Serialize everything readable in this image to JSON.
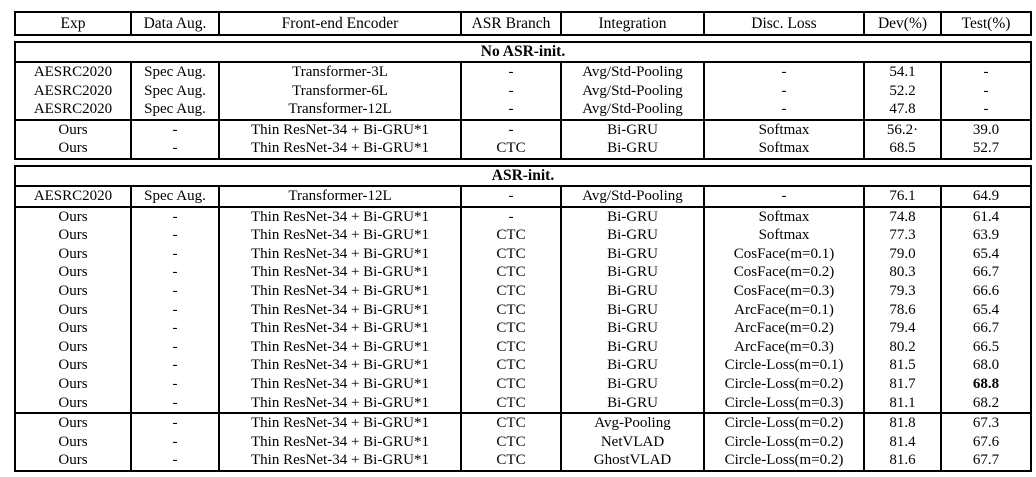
{
  "table": {
    "header": {
      "columns": [
        "Exp",
        "Data Aug.",
        "Front-end Encoder",
        "ASR Branch",
        "Integration",
        "Disc. Loss",
        "Dev(%)",
        "Test(%)"
      ]
    },
    "sections": [
      {
        "label": "No ASR-init.",
        "groups": [
          [
            [
              "AESRC2020",
              "Spec Aug.",
              "Transformer-3L",
              "-",
              "Avg/Std-Pooling",
              "-",
              "54.1",
              "-"
            ],
            [
              "AESRC2020",
              "Spec Aug.",
              "Transformer-6L",
              "-",
              "Avg/Std-Pooling",
              "-",
              "52.2",
              "-"
            ],
            [
              "AESRC2020",
              "Spec Aug.",
              "Transformer-12L",
              "-",
              "Avg/Std-Pooling",
              "-",
              "47.8",
              "-"
            ]
          ],
          [
            [
              "Ours",
              "-",
              "Thin ResNet-34 + Bi-GRU*1",
              "-",
              "Bi-GRU",
              "Softmax",
              "56.2·",
              "39.0"
            ],
            [
              "Ours",
              "-",
              "Thin ResNet-34 + Bi-GRU*1",
              "CTC",
              "Bi-GRU",
              "Softmax",
              "68.5",
              "52.7"
            ]
          ]
        ]
      },
      {
        "label": "ASR-init.",
        "groups": [
          [
            [
              "AESRC2020",
              "Spec Aug.",
              "Transformer-12L",
              "-",
              "Avg/Std-Pooling",
              "-",
              "76.1",
              "64.9"
            ]
          ],
          [
            [
              "Ours",
              "-",
              "Thin ResNet-34 + Bi-GRU*1",
              "-",
              "Bi-GRU",
              "Softmax",
              "74.8",
              "61.4"
            ],
            [
              "Ours",
              "-",
              "Thin ResNet-34 + Bi-GRU*1",
              "CTC",
              "Bi-GRU",
              "Softmax",
              "77.3",
              "63.9"
            ],
            [
              "Ours",
              "-",
              "Thin ResNet-34 + Bi-GRU*1",
              "CTC",
              "Bi-GRU",
              "CosFace(m=0.1)",
              "79.0",
              "65.4"
            ],
            [
              "Ours",
              "-",
              "Thin ResNet-34 + Bi-GRU*1",
              "CTC",
              "Bi-GRU",
              "CosFace(m=0.2)",
              "80.3",
              "66.7"
            ],
            [
              "Ours",
              "-",
              "Thin ResNet-34 + Bi-GRU*1",
              "CTC",
              "Bi-GRU",
              "CosFace(m=0.3)",
              "79.3",
              "66.6"
            ],
            [
              "Ours",
              "-",
              "Thin ResNet-34 + Bi-GRU*1",
              "CTC",
              "Bi-GRU",
              "ArcFace(m=0.1)",
              "78.6",
              "65.4"
            ],
            [
              "Ours",
              "-",
              "Thin ResNet-34 + Bi-GRU*1",
              "CTC",
              "Bi-GRU",
              "ArcFace(m=0.2)",
              "79.4",
              "66.7"
            ],
            [
              "Ours",
              "-",
              "Thin ResNet-34 + Bi-GRU*1",
              "CTC",
              "Bi-GRU",
              "ArcFace(m=0.3)",
              "80.2",
              "66.5"
            ],
            [
              "Ours",
              "-",
              "Thin ResNet-34 + Bi-GRU*1",
              "CTC",
              "Bi-GRU",
              "Circle-Loss(m=0.1)",
              "81.5",
              "68.0"
            ],
            [
              "Ours",
              "-",
              "Thin ResNet-34 + Bi-GRU*1",
              "CTC",
              "Bi-GRU",
              "Circle-Loss(m=0.2)",
              "81.7",
              "68.8"
            ],
            [
              "Ours",
              "-",
              "Thin ResNet-34 + Bi-GRU*1",
              "CTC",
              "Bi-GRU",
              "Circle-Loss(m=0.3)",
              "81.1",
              "68.2"
            ]
          ],
          [
            [
              "Ours",
              "-",
              "Thin ResNet-34 + Bi-GRU*1",
              "CTC",
              "Avg-Pooling",
              "Circle-Loss(m=0.2)",
              "81.8",
              "67.3"
            ],
            [
              "Ours",
              "-",
              "Thin ResNet-34 + Bi-GRU*1",
              "CTC",
              "NetVLAD",
              "Circle-Loss(m=0.2)",
              "81.4",
              "67.6"
            ],
            [
              "Ours",
              "-",
              "Thin ResNet-34 + Bi-GRU*1",
              "CTC",
              "GhostVLAD",
              "Circle-Loss(m=0.2)",
              "81.6",
              "67.7"
            ]
          ]
        ]
      }
    ],
    "bold_cells": [
      {
        "section": 1,
        "group": 1,
        "row": 9,
        "col": 7
      }
    ],
    "colors": {
      "border": "#000000",
      "text": "#000000",
      "background": "#ffffff"
    }
  }
}
